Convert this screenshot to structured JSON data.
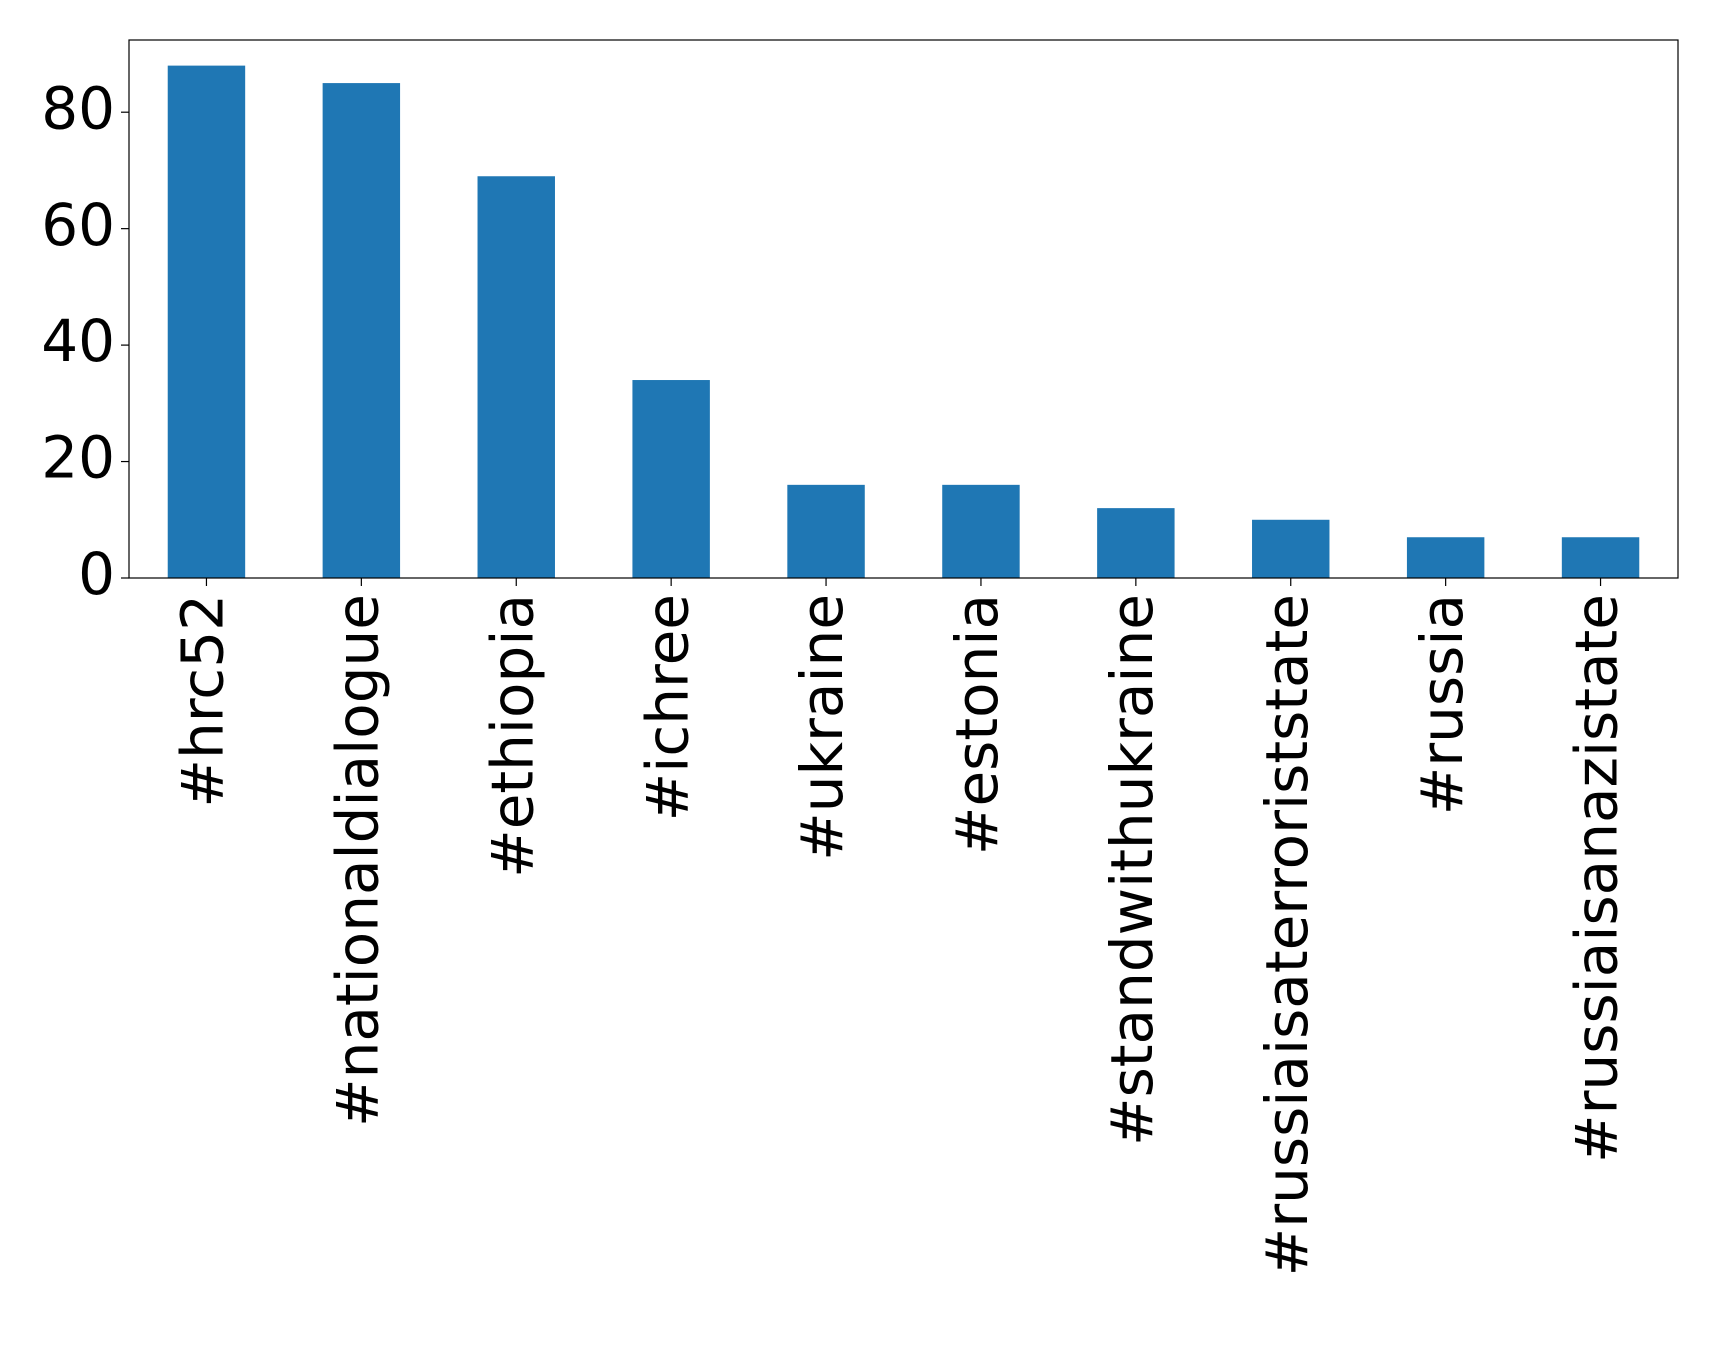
{
  "chart_data": {
    "type": "bar",
    "categories": [
      "#hrc52",
      "#nationaldialogue",
      "#ethiopia",
      "#ichree",
      "#ukraine",
      "#estonia",
      "#standwithukraine",
      "#russiaisaterroriststate",
      "#russia",
      "#russiaisanazistate"
    ],
    "values": [
      88,
      85,
      69,
      34,
      16,
      16,
      12,
      10,
      7,
      7
    ],
    "color": "#1f77b4",
    "ylim": [
      0,
      92.4
    ],
    "yticks": [
      0,
      20,
      40,
      60,
      80
    ],
    "grid": false
  }
}
